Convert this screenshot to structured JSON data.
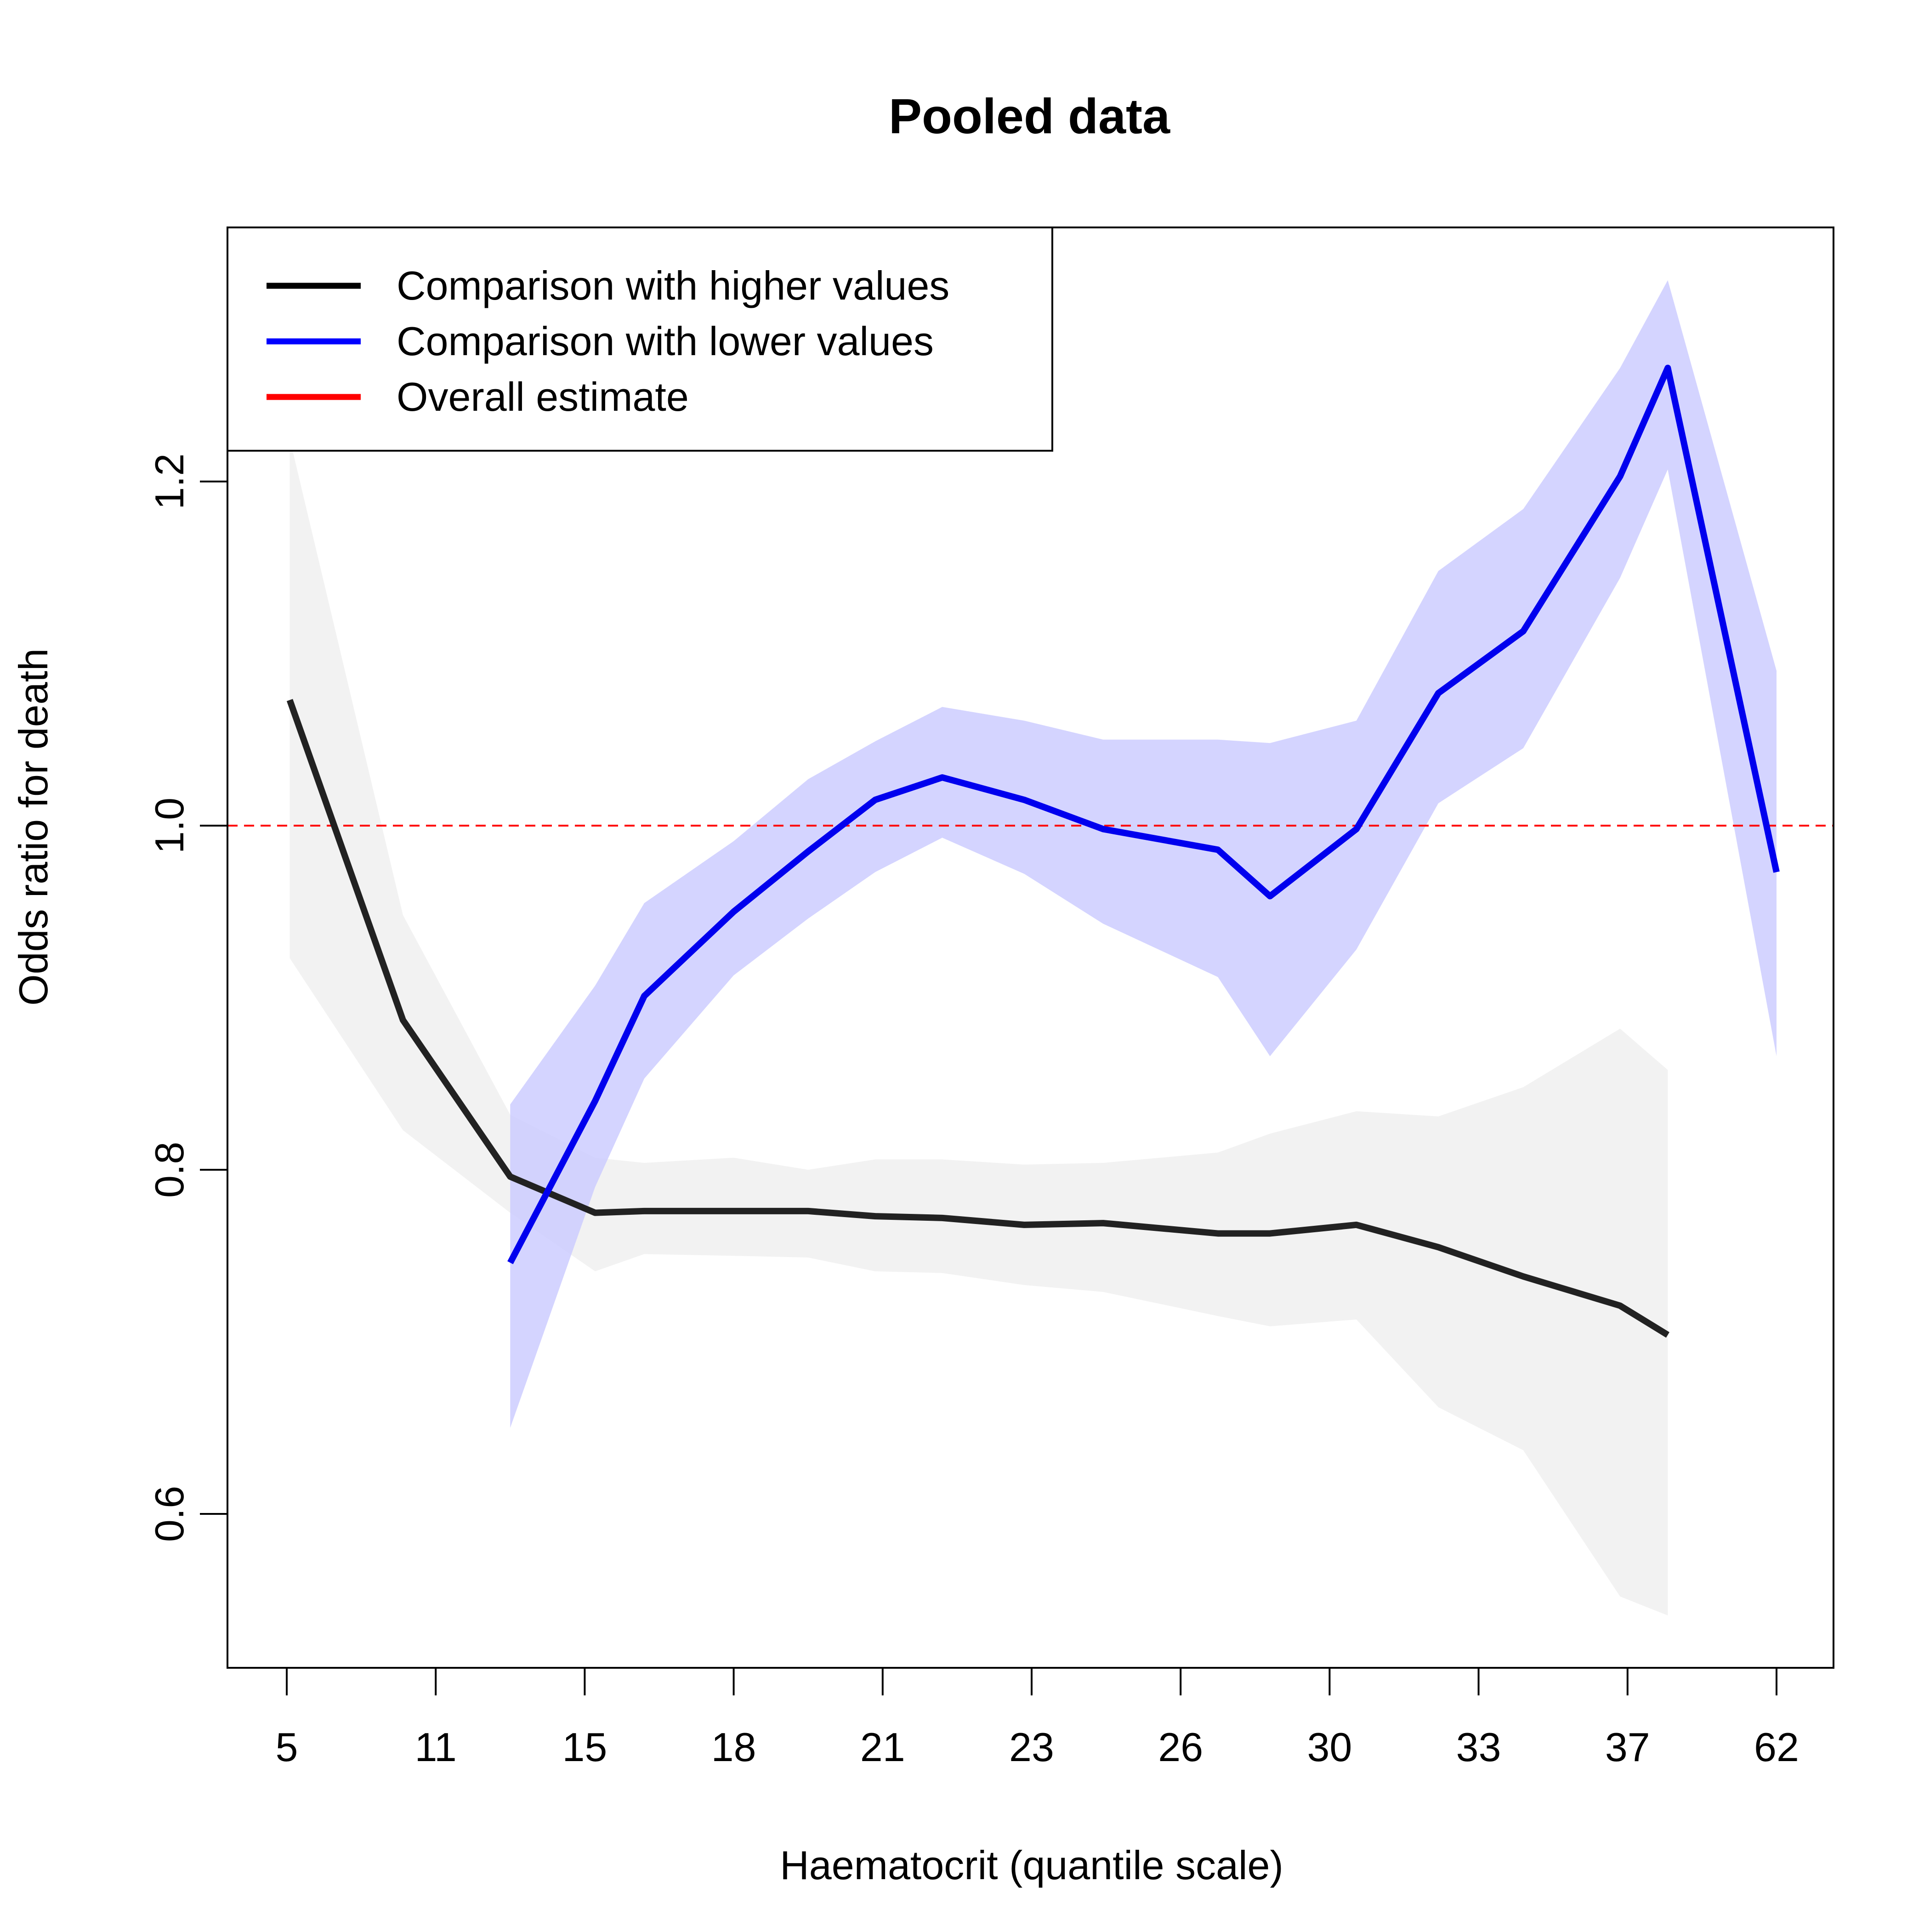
{
  "chart_data": {
    "type": "line",
    "title": "Pooled data",
    "xlabel": "Haematocrit (quantile scale)",
    "ylabel": "Odds ratio for death",
    "x_scale": "quantile",
    "x_range": [
      0,
      1
    ],
    "ylim": [
      0.51,
      1.35
    ],
    "x_ticks": [
      {
        "q": 0.0,
        "label": "5"
      },
      {
        "q": 0.1,
        "label": "11"
      },
      {
        "q": 0.2,
        "label": "15"
      },
      {
        "q": 0.3,
        "label": "18"
      },
      {
        "q": 0.4,
        "label": "21"
      },
      {
        "q": 0.5,
        "label": "23"
      },
      {
        "q": 0.6,
        "label": "26"
      },
      {
        "q": 0.7,
        "label": "30"
      },
      {
        "q": 0.8,
        "label": "33"
      },
      {
        "q": 0.9,
        "label": "37"
      },
      {
        "q": 1.0,
        "label": "62"
      }
    ],
    "y_ticks": [
      {
        "value": 0.6,
        "label": "0.6"
      },
      {
        "value": 0.8,
        "label": "0.8"
      },
      {
        "value": 1.0,
        "label": "1.0"
      },
      {
        "value": 1.2,
        "label": "1.2"
      }
    ],
    "grid": false,
    "legend_position": "top-left",
    "series": [
      {
        "name": "Comparison with higher values",
        "color": "#222222",
        "band_color": "#f2f2f2",
        "x": [
          0.002,
          0.078,
          0.15,
          0.207,
          0.24,
          0.3,
          0.35,
          0.395,
          0.44,
          0.495,
          0.548,
          0.625,
          0.66,
          0.718,
          0.773,
          0.83,
          0.895,
          0.927
        ],
        "y": [
          1.073,
          0.887,
          0.796,
          0.775,
          0.776,
          0.776,
          0.776,
          0.773,
          0.772,
          0.768,
          0.769,
          0.763,
          0.763,
          0.768,
          0.755,
          0.738,
          0.721,
          0.704
        ],
        "lower": [
          0.923,
          0.823,
          0.775,
          0.741,
          0.751,
          0.75,
          0.749,
          0.741,
          0.74,
          0.733,
          0.729,
          0.715,
          0.709,
          0.713,
          0.662,
          0.637,
          0.552,
          0.541
        ],
        "upper": [
          1.225,
          0.948,
          0.832,
          0.807,
          0.804,
          0.807,
          0.8,
          0.806,
          0.806,
          0.803,
          0.804,
          0.81,
          0.821,
          0.834,
          0.831,
          0.848,
          0.882,
          0.858
        ]
      },
      {
        "name": "Comparison with lower values",
        "color": "#0000ee",
        "band_color": "#ccccff",
        "x": [
          0.15,
          0.207,
          0.24,
          0.3,
          0.35,
          0.395,
          0.44,
          0.495,
          0.548,
          0.625,
          0.66,
          0.718,
          0.773,
          0.83,
          0.895,
          0.927,
          1.0
        ],
        "y": [
          0.746,
          0.84,
          0.901,
          0.95,
          0.985,
          1.015,
          1.028,
          1.015,
          0.998,
          0.986,
          0.959,
          0.998,
          1.077,
          1.113,
          1.203,
          1.266,
          0.973
        ],
        "lower": [
          0.65,
          0.79,
          0.853,
          0.913,
          0.946,
          0.973,
          0.993,
          0.972,
          0.943,
          0.912,
          0.866,
          0.928,
          1.013,
          1.045,
          1.144,
          1.207,
          0.866
        ],
        "upper": [
          0.838,
          0.907,
          0.955,
          0.991,
          1.027,
          1.049,
          1.069,
          1.061,
          1.05,
          1.05,
          1.048,
          1.061,
          1.148,
          1.184,
          1.266,
          1.317,
          1.09
        ]
      }
    ],
    "reference_lines": [
      {
        "name": "Overall estimate",
        "y": 1.0,
        "color": "#ff0000",
        "style": "dashed"
      }
    ],
    "legend": [
      {
        "label": "Comparison with higher values",
        "color": "#000000"
      },
      {
        "label": "Comparison with lower values",
        "color": "#0000ff"
      },
      {
        "label": "Overall estimate",
        "color": "#ff0000"
      }
    ]
  }
}
